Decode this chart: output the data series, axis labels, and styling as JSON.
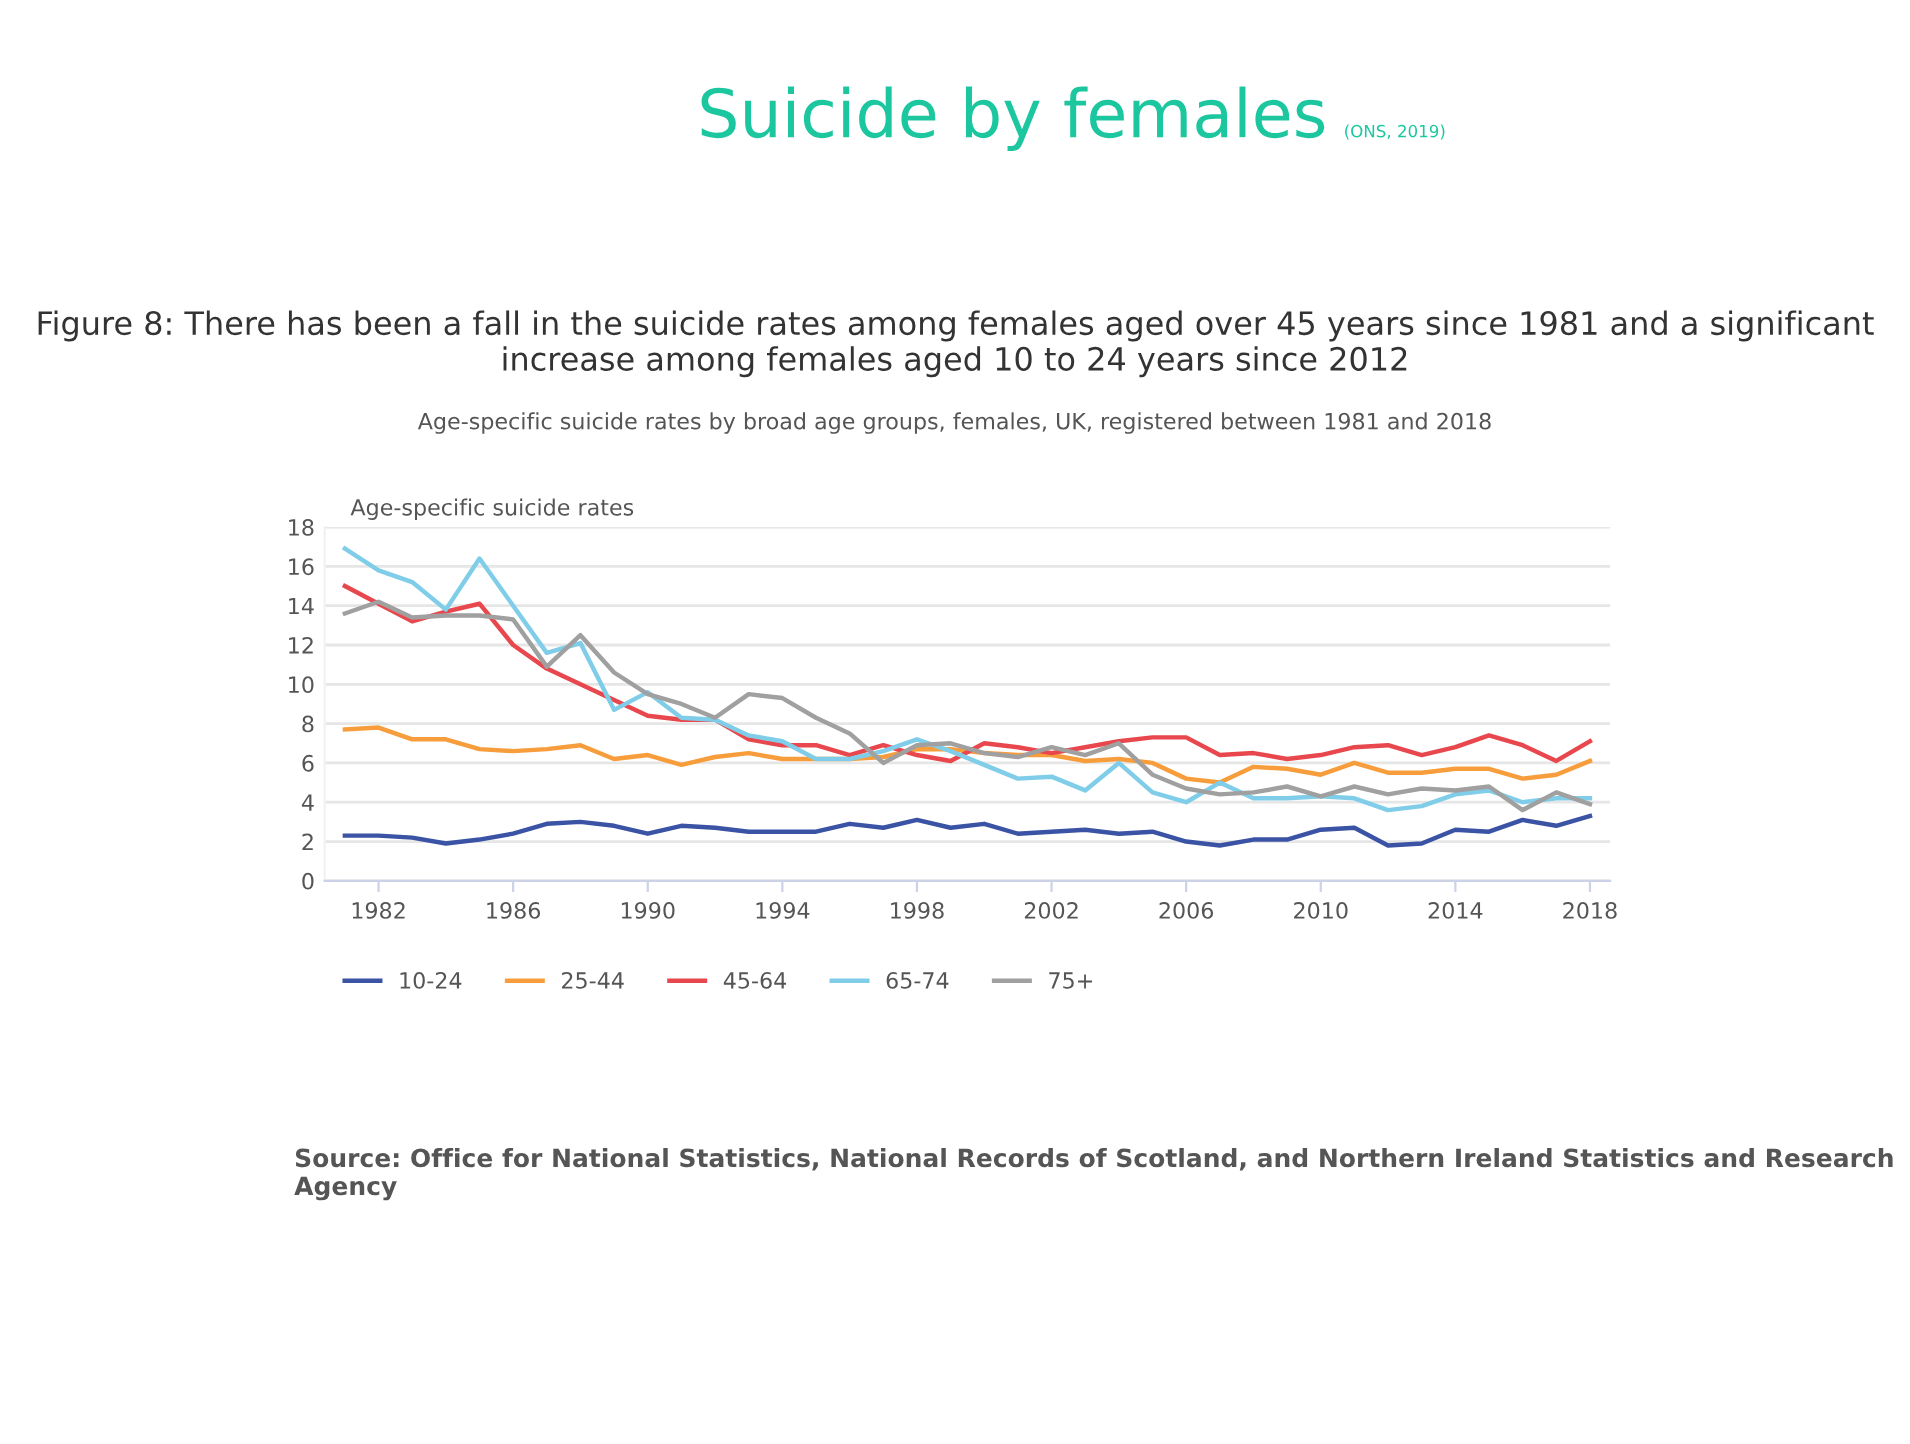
{
  "chart_data": {
    "type": "line",
    "title": "Figure 8: There has been a fall in the suicide rates among females aged over 45 years since 1981 and a significant increase among females aged 10 to 24 years since 2012",
    "subtitle": "Age-specific suicide rates by broad age groups, females, UK, registered between 1981 and 2018",
    "ylabel": "Age-specific suicide rates",
    "annotations": [
      "Suicide by females",
      "(ONS, 2019)",
      "Source: Office for National Statistics, National Records of Scotland, and Northern Ireland Statistics and Research Agency"
    ],
    "x": [
      1981,
      1982,
      1983,
      1984,
      1985,
      1986,
      1987,
      1988,
      1989,
      1990,
      1991,
      1992,
      1993,
      1994,
      1995,
      1996,
      1997,
      1998,
      1999,
      2000,
      2001,
      2002,
      2003,
      2004,
      2005,
      2006,
      2007,
      2008,
      2009,
      2010,
      2011,
      2012,
      2013,
      2014,
      2015,
      2016,
      2017,
      2018
    ],
    "series": [
      {
        "name": "10-24",
        "color": "#3a53a4",
        "values": [
          2.3,
          2.3,
          2.2,
          1.9,
          2.1,
          2.4,
          2.9,
          3.0,
          2.8,
          2.4,
          2.8,
          2.7,
          2.5,
          2.5,
          2.5,
          2.9,
          2.7,
          3.1,
          2.7,
          2.9,
          2.4,
          2.5,
          2.6,
          2.4,
          2.5,
          2.0,
          1.8,
          2.1,
          2.1,
          2.6,
          2.7,
          1.8,
          1.9,
          2.6,
          2.5,
          3.1,
          2.8,
          3.3
        ]
      },
      {
        "name": "25-44",
        "color": "#f79d3c",
        "values": [
          7.7,
          7.8,
          7.2,
          7.2,
          6.7,
          6.6,
          6.7,
          6.9,
          6.2,
          6.4,
          5.9,
          6.3,
          6.5,
          6.2,
          6.2,
          6.2,
          6.3,
          6.7,
          6.7,
          6.5,
          6.4,
          6.4,
          6.1,
          6.2,
          6.0,
          5.2,
          5.0,
          5.8,
          5.7,
          5.4,
          6.0,
          5.5,
          5.5,
          5.7,
          5.7,
          5.2,
          5.4,
          6.1
        ]
      },
      {
        "name": "45-64",
        "color": "#e8484d",
        "values": [
          15.0,
          14.1,
          13.2,
          13.7,
          14.1,
          12.0,
          10.8,
          10.0,
          9.2,
          8.4,
          8.2,
          8.2,
          7.2,
          6.9,
          6.9,
          6.4,
          6.9,
          6.4,
          6.1,
          7.0,
          6.8,
          6.5,
          6.8,
          7.1,
          7.3,
          7.3,
          6.4,
          6.5,
          6.2,
          6.4,
          6.8,
          6.9,
          6.4,
          6.8,
          7.4,
          6.9,
          6.1,
          7.1
        ]
      },
      {
        "name": "65-74",
        "color": "#7fcde8",
        "values": [
          16.9,
          15.8,
          15.2,
          13.8,
          16.4,
          14.0,
          11.6,
          12.1,
          8.7,
          9.6,
          8.3,
          8.2,
          7.4,
          7.1,
          6.2,
          6.2,
          6.6,
          7.2,
          6.6,
          5.9,
          5.2,
          5.3,
          4.6,
          6.0,
          4.5,
          4.0,
          5.0,
          4.2,
          4.2,
          4.3,
          4.2,
          3.6,
          3.8,
          4.4,
          4.6,
          4.0,
          4.2,
          4.2
        ]
      },
      {
        "name": "75+",
        "color": "#a0a0a0",
        "values": [
          13.6,
          14.2,
          13.4,
          13.5,
          13.5,
          13.3,
          10.9,
          12.5,
          10.6,
          9.5,
          9.0,
          8.3,
          9.5,
          9.3,
          8.3,
          7.5,
          6.0,
          6.9,
          7.0,
          6.5,
          6.3,
          6.8,
          6.4,
          7.0,
          5.4,
          4.7,
          4.4,
          4.5,
          4.8,
          4.3,
          4.8,
          4.4,
          4.7,
          4.6,
          4.8,
          3.6,
          4.5,
          3.9
        ]
      }
    ],
    "xlim": [
      1980.4,
      2018.6
    ],
    "xticks": [
      1982,
      1986,
      1990,
      1994,
      1998,
      2002,
      2006,
      2010,
      2014,
      2018
    ],
    "ylim": [
      0,
      18
    ],
    "yticks": [
      0,
      2,
      4,
      6,
      8,
      10,
      12,
      14,
      16,
      18
    ],
    "grid": "y",
    "legend": "bottom",
    "marker": "none",
    "line_style": "solid"
  }
}
